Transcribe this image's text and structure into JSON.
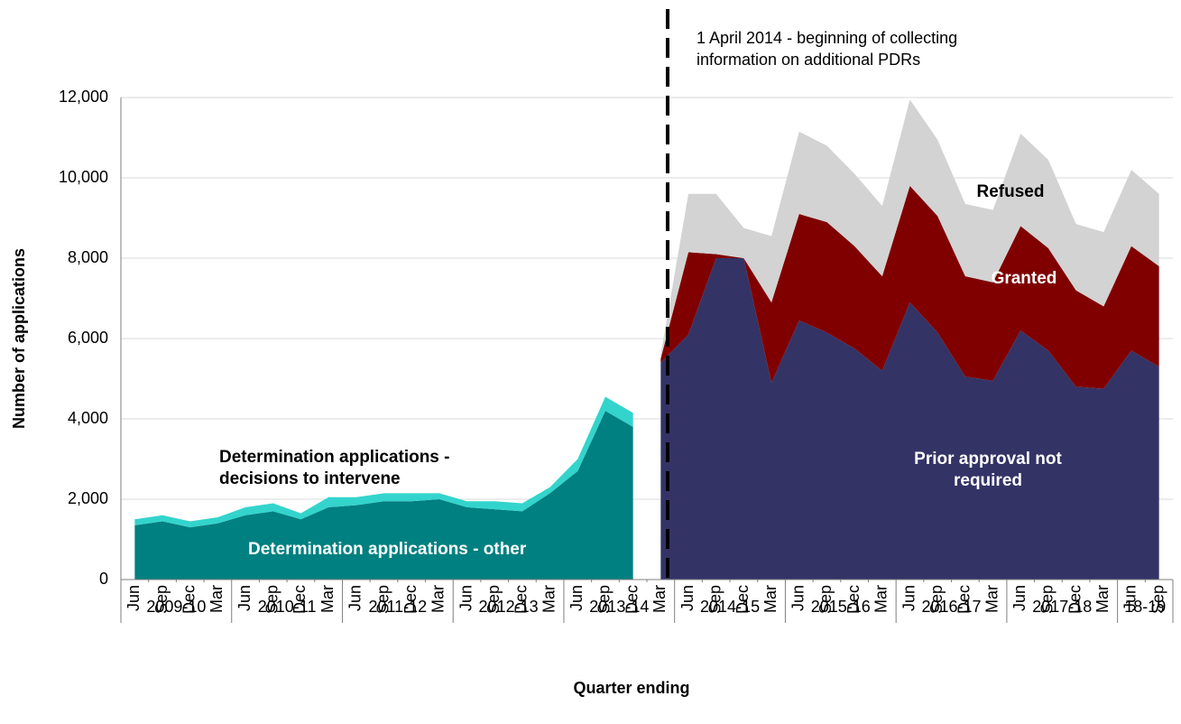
{
  "chart_data": {
    "type": "stacked_area",
    "y_label": "Number of applications",
    "x_label": "Quarter ending",
    "annotation": "1 April 2014 - beginning of collecting information on additional PDRs",
    "year_groups": [
      {
        "label": "2009-10",
        "quarters": [
          "Jun",
          "Sep",
          "Dec",
          "Mar"
        ]
      },
      {
        "label": "2010-11",
        "quarters": [
          "Jun",
          "Sep",
          "Dec",
          "Mar"
        ]
      },
      {
        "label": "2011-12",
        "quarters": [
          "Jun",
          "Sep",
          "Dec",
          "Mar"
        ]
      },
      {
        "label": "2012-13",
        "quarters": [
          "Jun",
          "Sep",
          "Dec",
          "Mar"
        ]
      },
      {
        "label": "2013-14",
        "quarters": [
          "Jun",
          "Sep",
          "Dec",
          "Mar"
        ]
      },
      {
        "label": "2014-15",
        "quarters": [
          "Jun",
          "Sep",
          "Dec",
          "Mar"
        ]
      },
      {
        "label": "2015-16",
        "quarters": [
          "Jun",
          "Sep",
          "Dec",
          "Mar"
        ]
      },
      {
        "label": "2016-17",
        "quarters": [
          "Jun",
          "Sep",
          "Dec",
          "Mar"
        ]
      },
      {
        "label": "2017-18",
        "quarters": [
          "Jun",
          "Sep",
          "Dec",
          "Mar"
        ]
      },
      {
        "label": "18-19",
        "quarters": [
          "Jun",
          "Sep"
        ]
      }
    ],
    "series": [
      {
        "name": "Determination applications - other",
        "color": "#008080",
        "values": [
          1350,
          1450,
          1300,
          1400,
          1600,
          1700,
          1500,
          1800,
          1850,
          1950,
          1950,
          2000,
          1800,
          1750,
          1700,
          2150,
          2700,
          4200,
          3800,
          null,
          null,
          null,
          null,
          null,
          null,
          null,
          null,
          null,
          null,
          null,
          null,
          null,
          null,
          null,
          null,
          null,
          null,
          null
        ]
      },
      {
        "name": "Determination applications - decisions to intervene",
        "color": "#33d4cc",
        "values": [
          150,
          150,
          150,
          150,
          200,
          200,
          150,
          250,
          200,
          200,
          200,
          150,
          150,
          200,
          200,
          150,
          300,
          350,
          350,
          null,
          null,
          null,
          null,
          null,
          null,
          null,
          null,
          null,
          null,
          null,
          null,
          null,
          null,
          null,
          null,
          null,
          null,
          null
        ]
      },
      {
        "name": "Prior approval not required",
        "color": "#333366",
        "values": [
          null,
          null,
          null,
          null,
          null,
          null,
          null,
          null,
          null,
          null,
          null,
          null,
          null,
          null,
          null,
          null,
          null,
          null,
          null,
          5400,
          6100,
          8000,
          8000,
          4900,
          6450,
          6150,
          5750,
          5200,
          6900,
          6150,
          5050,
          4950,
          6200,
          5700,
          4800,
          4750,
          5700,
          5300
        ]
      },
      {
        "name": "Granted",
        "color": "#800000",
        "values": [
          null,
          null,
          null,
          null,
          null,
          null,
          null,
          null,
          null,
          null,
          null,
          null,
          null,
          null,
          null,
          null,
          null,
          null,
          null,
          100,
          2050,
          100,
          0,
          2000,
          2650,
          2750,
          2550,
          2350,
          2900,
          2900,
          2500,
          2450,
          2600,
          2550,
          2400,
          2050,
          2600,
          2500
        ]
      },
      {
        "name": "Refused",
        "color": "#d3d3d3",
        "values": [
          null,
          null,
          null,
          null,
          null,
          null,
          null,
          null,
          null,
          null,
          null,
          null,
          null,
          null,
          null,
          null,
          null,
          null,
          null,
          100,
          1450,
          1500,
          750,
          1650,
          2050,
          1900,
          1800,
          1750,
          2150,
          1900,
          1800,
          1800,
          2300,
          2200,
          1650,
          1850,
          1900,
          1800
        ]
      }
    ],
    "ylim": [
      0,
      12000
    ],
    "yticks": [
      0,
      {
        "value": 2000,
        "label": "2,000"
      },
      {
        "value": 4000,
        "label": "4,000"
      },
      {
        "value": 6000,
        "label": "6,000"
      },
      {
        "value": 8000,
        "label": "8,000"
      },
      {
        "value": 10000,
        "label": "10,000"
      },
      {
        "value": 12000,
        "label": "12,000"
      }
    ]
  }
}
